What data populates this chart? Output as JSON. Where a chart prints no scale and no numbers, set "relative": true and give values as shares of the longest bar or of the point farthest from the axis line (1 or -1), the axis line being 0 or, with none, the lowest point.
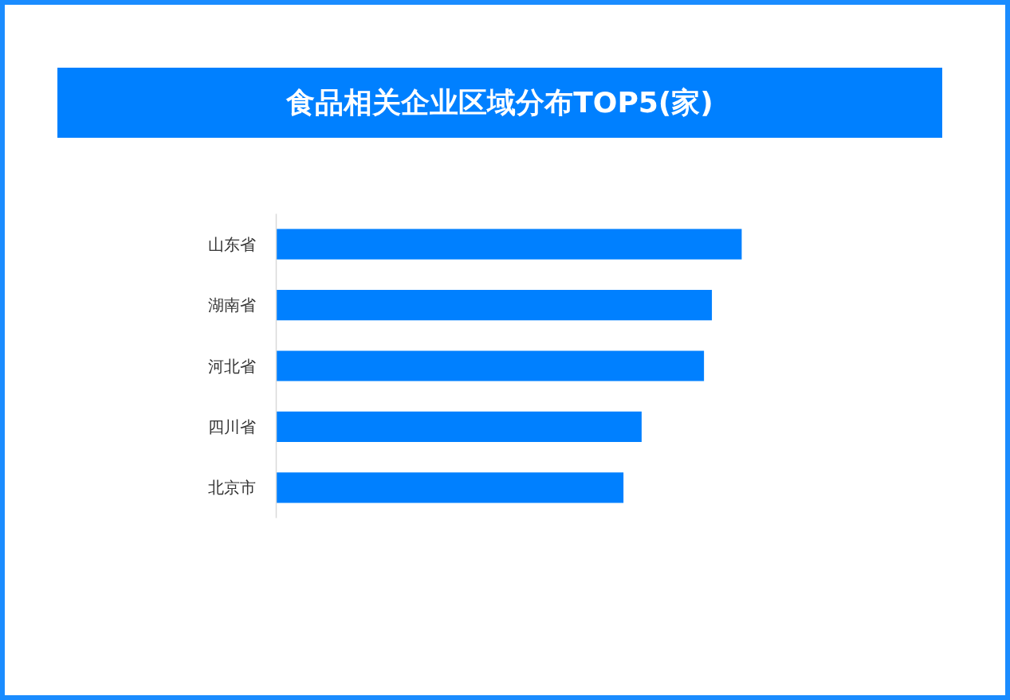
{
  "chart_data": {
    "type": "bar",
    "orientation": "horizontal",
    "relative": true,
    "title": "食品相关企业区域分布TOP5(家)",
    "categories": [
      "山东省",
      "湖南省",
      "河北省",
      "四川省",
      "北京市"
    ],
    "values": [
      1,
      0.936,
      0.919,
      0.785,
      0.746
    ],
    "color": "#0080ff",
    "grid": false
  }
}
